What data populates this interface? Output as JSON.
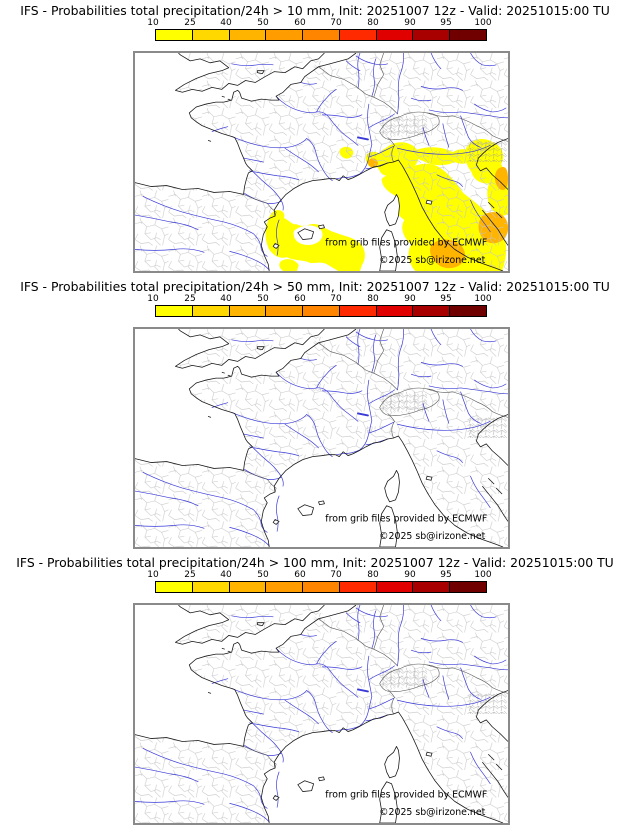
{
  "model": "IFS",
  "init": "20251007 12z",
  "valid": "20251015:00 TU",
  "thresholds_mm": [
    10,
    50,
    100
  ],
  "colorbar": {
    "tick_labels": [
      "10",
      "25",
      "40",
      "50",
      "60",
      "70",
      "80",
      "90",
      "95",
      "100"
    ],
    "segment_colors": [
      "#ffff00",
      "#ffd800",
      "#ffb400",
      "#ff9c00",
      "#ff8400",
      "#ff2a00",
      "#e00000",
      "#a80000",
      "#700000"
    ]
  },
  "map_colors": {
    "river": "#3a3ad9",
    "coast": "#1a1a1a",
    "border": "#555555",
    "department": "#c6c6c6",
    "frame": "#8a8a8a",
    "precip_low": "#ffff00",
    "precip_mid": "#ffb400"
  },
  "credit": {
    "line1": "from grib files provided by ECMWF",
    "line2": "©2025 sb@irizone.net"
  },
  "panels": [
    {
      "title": "IFS - Probabilities total precipitation/24h > 10 mm, Init: 20251007 12z - Valid: 20251015:00 TU",
      "threshold_mm": 10,
      "has_precipitation_overlay": true
    },
    {
      "title": "IFS - Probabilities total precipitation/24h > 50 mm, Init: 20251007 12z - Valid: 20251015:00 TU",
      "threshold_mm": 50,
      "has_precipitation_overlay": false
    },
    {
      "title": "IFS - Probabilities total precipitation/24h > 100 mm, Init: 20251007 12z - Valid: 20251015:00 TU",
      "threshold_mm": 100,
      "has_precipitation_overlay": false
    }
  ]
}
